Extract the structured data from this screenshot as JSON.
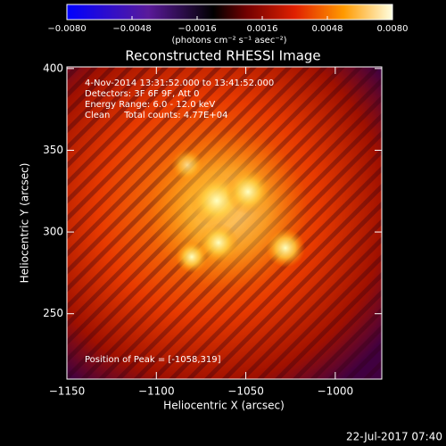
{
  "chart_data": {
    "type": "image",
    "title": "Reconstructed RHESSI Image",
    "annotations": [
      "4-Nov-2014 13:31:52.000 to 13:41:52.000",
      "Detectors: 3F 6F 9F, Att 0",
      "Energy Range: 6.0 - 12.0 keV",
      "Clean     Total counts: 4.77E+04",
      "Position of Peak = [-1058,319]"
    ],
    "xlabel": "Heliocentric X (arcsec)",
    "ylabel": "Heliocentric Y (arcsec)",
    "xlim": [
      -1150,
      -974
    ],
    "xticks": [
      {
        "value": -1150,
        "label": "−1150"
      },
      {
        "value": -1100,
        "label": "−1100"
      },
      {
        "value": -1050,
        "label": "−1050"
      },
      {
        "value": -1000,
        "label": "−1000"
      }
    ],
    "ylim": [
      210,
      401
    ],
    "yticks": [
      250,
      300,
      350,
      400
    ],
    "colorbar": {
      "label": "(photons cm⁻² s⁻¹ asec⁻²)",
      "lim": [
        -0.008,
        0.008
      ],
      "ticks": [
        {
          "value": -0.008,
          "label": "−0.0080"
        },
        {
          "value": -0.0048,
          "label": "−0.0048"
        },
        {
          "value": -0.0016,
          "label": "−0.0016"
        },
        {
          "value": 0.0016,
          "label": "0.0016"
        },
        {
          "value": 0.0048,
          "label": "0.0048"
        },
        {
          "value": 0.008,
          "label": "0.0080"
        }
      ]
    },
    "footer": "22-Jul-2017 07:40"
  }
}
